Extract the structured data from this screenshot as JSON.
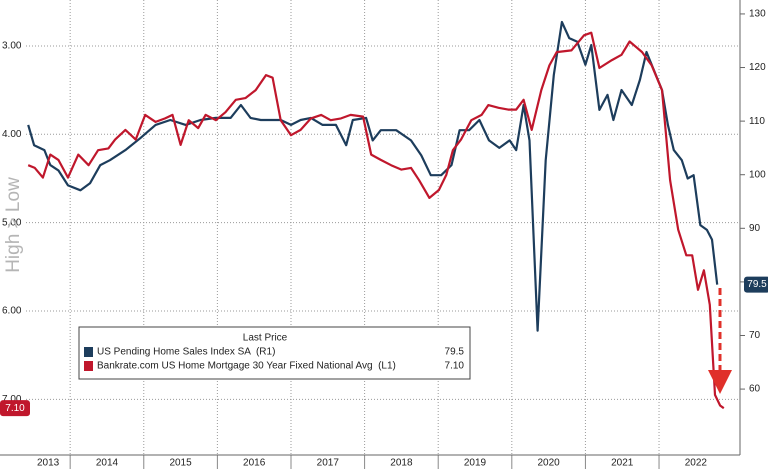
{
  "chart_data": {
    "type": "line",
    "y_label": "High > Low",
    "legend_title": "Last Price",
    "legend": "lower left",
    "grid": true,
    "xlim": [
      2013.4,
      2023.1
    ],
    "xticks": [
      {
        "value": 2013.7,
        "label": "2013"
      },
      {
        "value": 2014.5,
        "label": "2014"
      },
      {
        "value": 2015.5,
        "label": "2015"
      },
      {
        "value": 2016.5,
        "label": "2016"
      },
      {
        "value": 2017.5,
        "label": "2017"
      },
      {
        "value": 2018.5,
        "label": "2018"
      },
      {
        "value": 2019.5,
        "label": "2019"
      },
      {
        "value": 2020.5,
        "label": "2020"
      },
      {
        "value": 2021.5,
        "label": "2021"
      },
      {
        "value": 2022.5,
        "label": "2022"
      }
    ],
    "x_gridlines": [
      2014,
      2015,
      2016,
      2017,
      2018,
      2019,
      2020,
      2021,
      2022
    ],
    "ylim": [
      7.63,
      2.48
    ],
    "yticks": [
      {
        "value": 3,
        "label": "3.00"
      },
      {
        "value": 4,
        "label": "4.00"
      },
      {
        "value": 5,
        "label": "5.00"
      },
      {
        "value": 6,
        "label": "6.00"
      },
      {
        "value": 7,
        "label": "7.00"
      }
    ],
    "y2lim": [
      47.7,
      132.6
    ],
    "y2ticks": [
      60,
      70,
      80,
      90,
      100,
      110,
      120,
      130
    ],
    "series": [
      {
        "name": "US Pending Home Sales Index SA  (R1)",
        "color": "#1d3d5c",
        "axis": "y2",
        "last_price": 79.5,
        "x": [
          2013.43,
          2013.51,
          2013.65,
          2013.73,
          2013.84,
          2013.97,
          2014.14,
          2014.27,
          2014.41,
          2014.54,
          2014.75,
          2014.95,
          2015.16,
          2015.36,
          2015.57,
          2015.77,
          2015.98,
          2016.18,
          2016.32,
          2016.45,
          2016.59,
          2016.86,
          2017.0,
          2017.13,
          2017.27,
          2017.43,
          2017.61,
          2017.75,
          2017.84,
          2018.02,
          2018.11,
          2018.22,
          2018.43,
          2018.63,
          2018.77,
          2018.9,
          2019.04,
          2019.18,
          2019.29,
          2019.42,
          2019.56,
          2019.69,
          2019.83,
          2019.97,
          2020.06,
          2020.16,
          2020.24,
          2020.35,
          2020.46,
          2020.57,
          2020.68,
          2020.78,
          2020.89,
          2021.0,
          2021.08,
          2021.19,
          2021.3,
          2021.38,
          2021.49,
          2021.63,
          2021.74,
          2021.83,
          2021.93,
          2022.04,
          2022.12,
          2022.2,
          2022.31,
          2022.39,
          2022.47,
          2022.56,
          2022.65,
          2022.72,
          2022.79
        ],
        "values": [
          109.3,
          105.5,
          104.6,
          101.8,
          100.8,
          98.0,
          97.1,
          98.4,
          101.8,
          102.7,
          104.6,
          106.8,
          109.3,
          110.2,
          109.3,
          110.2,
          110.6,
          110.6,
          113.0,
          110.6,
          110.2,
          110.2,
          109.3,
          110.2,
          110.6,
          109.3,
          109.3,
          105.5,
          110.2,
          110.6,
          106.4,
          108.3,
          108.3,
          106.4,
          103.6,
          99.9,
          99.9,
          101.8,
          108.3,
          108.3,
          110.2,
          106.4,
          105.0,
          106.4,
          104.6,
          113.0,
          106.4,
          70.9,
          102.7,
          118.6,
          128.5,
          125.5,
          124.8,
          120.5,
          124.2,
          112.1,
          114.9,
          110.2,
          115.8,
          113.0,
          117.7,
          122.9,
          119.5,
          115.8,
          109.3,
          104.6,
          102.7,
          99.3,
          99.9,
          90.6,
          89.7,
          87.9,
          79.5
        ]
      },
      {
        "name": "Bankrate.com US Home Mortgage 30 Year Fixed National Avg  (L1)",
        "color": "#c0172c",
        "axis": "y",
        "last_price": {
          "value": 7.1,
          "label": "7.10"
        },
        "x": [
          2013.43,
          2013.52,
          2013.63,
          2013.73,
          2013.84,
          2013.97,
          2014.11,
          2014.25,
          2014.38,
          2014.52,
          2014.61,
          2014.75,
          2014.89,
          2015.02,
          2015.16,
          2015.29,
          2015.39,
          2015.5,
          2015.61,
          2015.74,
          2015.84,
          2015.98,
          2016.11,
          2016.25,
          2016.38,
          2016.52,
          2016.66,
          2016.75,
          2016.86,
          2017.0,
          2017.13,
          2017.27,
          2017.41,
          2017.54,
          2017.68,
          2017.81,
          2017.98,
          2018.09,
          2018.22,
          2018.36,
          2018.5,
          2018.63,
          2018.74,
          2018.88,
          2019.01,
          2019.11,
          2019.2,
          2019.31,
          2019.45,
          2019.59,
          2019.68,
          2019.82,
          2019.95,
          2020.06,
          2020.16,
          2020.27,
          2020.4,
          2020.51,
          2020.61,
          2020.81,
          2020.98,
          2021.08,
          2021.19,
          2021.36,
          2021.49,
          2021.6,
          2021.77,
          2021.9,
          2022.04,
          2022.15,
          2022.26,
          2022.37,
          2022.45,
          2022.53,
          2022.61,
          2022.69,
          2022.76,
          2022.83,
          2022.88
        ],
        "values": [
          4.35,
          4.38,
          4.49,
          4.23,
          4.29,
          4.49,
          4.23,
          4.35,
          4.18,
          4.16,
          4.06,
          3.95,
          4.06,
          3.78,
          3.86,
          3.82,
          3.78,
          4.12,
          3.84,
          3.93,
          3.78,
          3.84,
          3.75,
          3.61,
          3.59,
          3.5,
          3.33,
          3.36,
          3.84,
          4.01,
          3.95,
          3.82,
          3.78,
          3.84,
          3.82,
          3.78,
          3.8,
          4.23,
          4.29,
          4.35,
          4.4,
          4.38,
          4.52,
          4.72,
          4.63,
          4.46,
          4.18,
          4.06,
          3.84,
          3.78,
          3.67,
          3.7,
          3.72,
          3.72,
          3.61,
          3.95,
          3.5,
          3.22,
          3.07,
          3.05,
          2.88,
          2.85,
          3.25,
          3.16,
          3.1,
          2.95,
          3.07,
          3.22,
          3.5,
          4.52,
          5.08,
          5.37,
          5.37,
          5.76,
          5.54,
          5.93,
          6.95,
          7.07,
          7.1
        ]
      }
    ]
  }
}
